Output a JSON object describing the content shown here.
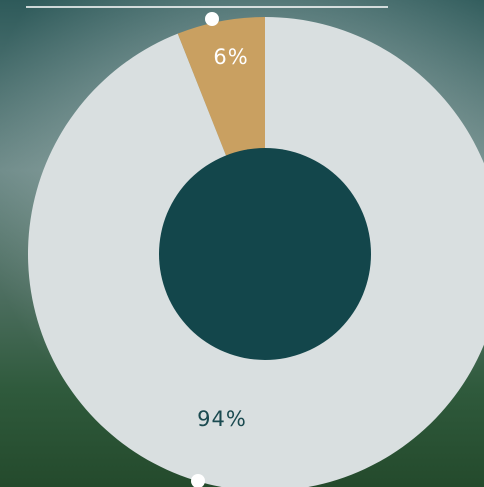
{
  "chart_data": {
    "type": "donut",
    "values": [
      94,
      6
    ],
    "value_labels": [
      "94%",
      "6%"
    ],
    "colors": [
      "#d9dfe0",
      "#c9a061"
    ],
    "label_colors": [
      "#1a4a50",
      "#ffffff"
    ],
    "hole_color": "#13464b"
  }
}
